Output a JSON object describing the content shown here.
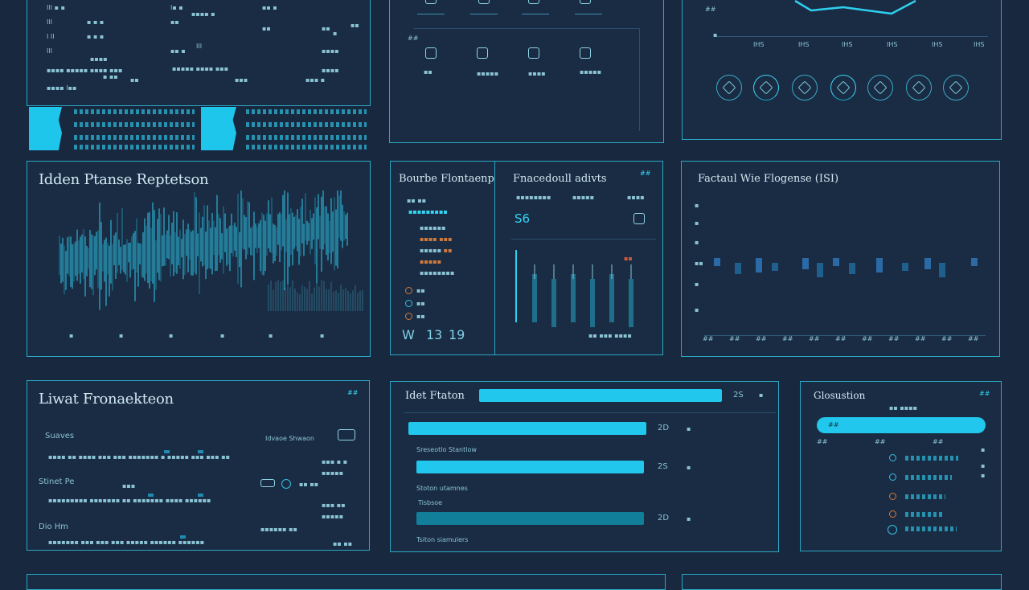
{
  "colors": {
    "background": "#18293f",
    "panel_border": "#2aa7c4",
    "accent": "#21c7ec",
    "dark_accent": "#117f9a"
  },
  "panel_top_mid": {
    "side_label": "##"
  },
  "panel_top_right": {
    "axis_label": "##",
    "x_ticks": [
      "IHS",
      "IHS",
      "IHS",
      "IHS",
      "IHS",
      "IHS"
    ]
  },
  "panel_left_chart": {
    "title": "Idden Ptanse Reptetson"
  },
  "panel_middle": {
    "left_title": "Bourbe Flontaenp",
    "right_title": "Fnacedoull adivts",
    "right_badge": "##",
    "big_value": "S6",
    "bottom_labels": [
      "W",
      "13",
      "19"
    ]
  },
  "panel_right_chart": {
    "title": "Factaul Wie Flogense (ISI)",
    "x_ticks": [
      "##",
      "##",
      "##",
      "##",
      "##",
      "##",
      "##",
      "##",
      "##",
      "##",
      "##"
    ]
  },
  "panel_bottom_left": {
    "title": "Liwat Fronaekteon",
    "badge": "##",
    "row1_label": "Suaves",
    "row1_right": "Idvaoe Shwaon",
    "row2_label": "Stinet Pe",
    "row3_label": "Dio Hm"
  },
  "panel_bottom_mid": {
    "title": "Idet Ftaton",
    "header_value": "2S",
    "rows": [
      {
        "value": "2D",
        "label": "Sreseotlo Stantlow",
        "fill": 0.7
      },
      {
        "value": "2S",
        "label": "Stoton utamnes",
        "fill": 0.67
      },
      {
        "value": "2D",
        "label": "Tsiton siamulers",
        "fill": 0.67
      }
    ],
    "extra_label": "Tisbsoe"
  },
  "panel_bottom_right": {
    "title": "Glosustion",
    "badge": "##",
    "chip_label": "##",
    "col_labels": [
      "##",
      "##",
      "##"
    ]
  }
}
